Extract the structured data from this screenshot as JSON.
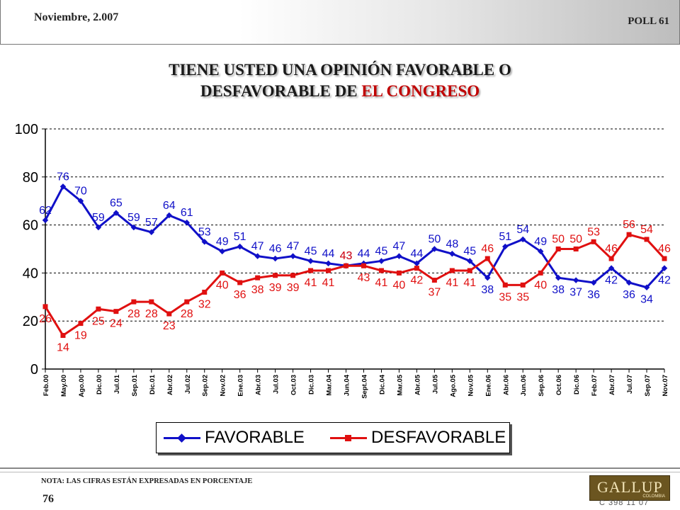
{
  "header": {
    "date": "Noviembre, 2.007",
    "poll": "POLL 61"
  },
  "title": {
    "line1": "TIENE USTED UNA OPINIÓN FAVORABLE O",
    "line2_prefix": "DESFAVORABLE DE ",
    "line2_accent": "EL CONGRESO"
  },
  "colors": {
    "favorable": "#1010c8",
    "desfavorable": "#e01010",
    "accent": "#c00000"
  },
  "chart_data": {
    "type": "line",
    "title": "TIENE USTED UNA OPINIÓN FAVORABLE O DESFAVORABLE DE EL CONGRESO",
    "xlabel": "",
    "ylabel": "",
    "ylim": [
      0,
      100
    ],
    "yticks": [
      0,
      20,
      40,
      60,
      80,
      100
    ],
    "grid": "horizontal dashed",
    "legend": "bottom",
    "categories": [
      "Feb.00",
      "May.00",
      "Ago.00",
      "Dic.00",
      "Jul.01",
      "Sep.01",
      "Dic.01",
      "Abr.02",
      "Jul.02",
      "Sep.02",
      "Nov.02",
      "Ene.03",
      "Abr.03",
      "Jul.03",
      "Oct.03",
      "Dic.03",
      "Mar.04",
      "Jun.04",
      "Sept.04",
      "Dic.04",
      "Mar.05",
      "Abr.05",
      "Jul.05",
      "Ago.05",
      "Nov.05",
      "Ene.06",
      "Abr.06",
      "Jun.06",
      "Sep.06",
      "Oct.06",
      "Dic.06",
      "Feb.07",
      "Abr.07",
      "Jul.07",
      "Sep.07",
      "Nov.07"
    ],
    "series": [
      {
        "name": "FAVORABLE",
        "values": [
          62,
          76,
          70,
          59,
          65,
          59,
          57,
          64,
          61,
          53,
          49,
          51,
          47,
          46,
          47,
          45,
          44,
          43,
          44,
          45,
          47,
          44,
          50,
          48,
          45,
          38,
          51,
          54,
          49,
          38,
          37,
          36,
          42,
          36,
          34,
          42
        ]
      },
      {
        "name": "DESFAVORABLE",
        "values": [
          26,
          14,
          19,
          25,
          24,
          28,
          28,
          23,
          28,
          32,
          40,
          36,
          38,
          39,
          39,
          41,
          41,
          43,
          43,
          41,
          40,
          42,
          37,
          41,
          41,
          46,
          35,
          35,
          40,
          50,
          50,
          53,
          46,
          56,
          54,
          46
        ]
      }
    ]
  },
  "legend": {
    "favorable": "FAVORABLE",
    "desfavorable": "DESFAVORABLE"
  },
  "footer": {
    "note": "NOTA: LAS CIFRAS ESTÁN EXPRESADAS EN PORCENTAJE",
    "page": "76",
    "logo": "GALLUP",
    "logo_sub": "COLOMBIA",
    "code": "C 398 11 07"
  }
}
